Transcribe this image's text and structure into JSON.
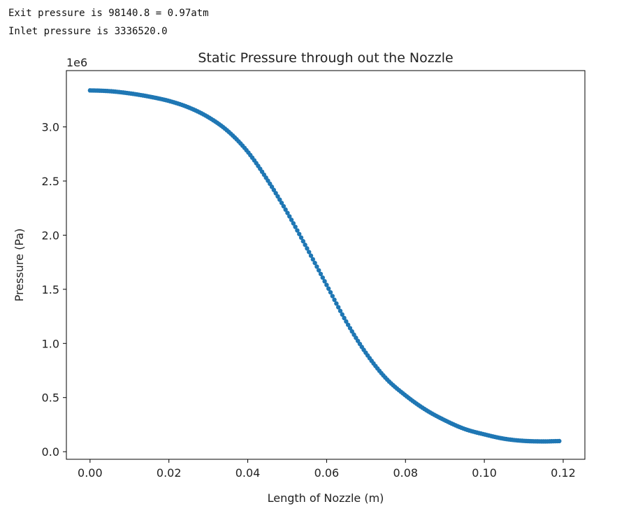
{
  "output": {
    "line1": "Exit pressure is 98140.8 = 0.97atm",
    "line2": "Inlet pressure is 3336520.0"
  },
  "chart_data": {
    "type": "scatter",
    "title": "Static Pressure through out the Nozzle",
    "xlabel": "Length of Nozzle (m)",
    "ylabel": "Pressure (Pa)",
    "y_offset_label": "1e6",
    "xlim": [
      -0.006,
      0.1255
    ],
    "ylim": [
      -0.07,
      3.52
    ],
    "xticks": [
      0.0,
      0.02,
      0.04,
      0.06,
      0.08,
      0.1,
      0.12
    ],
    "xtick_labels": [
      "0.00",
      "0.02",
      "0.04",
      "0.06",
      "0.08",
      "0.10",
      "0.12"
    ],
    "yticks": [
      0.0,
      0.5,
      1.0,
      1.5,
      2.0,
      2.5,
      3.0
    ],
    "ytick_labels": [
      "0.0",
      "0.5",
      "1.0",
      "1.5",
      "2.0",
      "2.5",
      "3.0"
    ],
    "marker_color": "#1f77b4",
    "series": [
      {
        "x": [
          0.0,
          0.005,
          0.01,
          0.015,
          0.02,
          0.025,
          0.03,
          0.035,
          0.04,
          0.045,
          0.05,
          0.055,
          0.06,
          0.065,
          0.07,
          0.075,
          0.08,
          0.085,
          0.09,
          0.095,
          0.1,
          0.105,
          0.11,
          0.115,
          0.119
        ],
        "y": [
          3.337,
          3.33,
          3.31,
          3.28,
          3.24,
          3.18,
          3.09,
          2.96,
          2.77,
          2.51,
          2.21,
          1.88,
          1.54,
          1.2,
          0.91,
          0.68,
          0.52,
          0.39,
          0.29,
          0.21,
          0.16,
          0.12,
          0.1,
          0.095,
          0.098
        ]
      }
    ]
  }
}
